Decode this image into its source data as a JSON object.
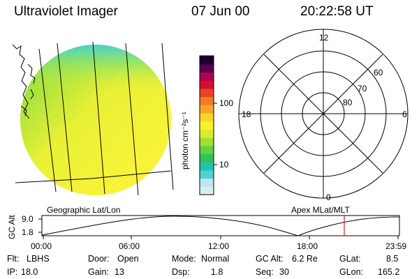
{
  "header": {
    "title": "Ultraviolet Imager",
    "date": "07 Jun 00",
    "time": "20:22:58 UT"
  },
  "globe_panel": {
    "label": "Geographic Lat/Lon"
  },
  "colorbar": {
    "unit_label": "photon cm⁻²s⁻¹",
    "tick_100": "100",
    "tick_10": "10",
    "colors": [
      "#d9eef2",
      "#bfe6ee",
      "#4fd1d6",
      "#22c2b0",
      "#2ec25a",
      "#62d23a",
      "#9fe033",
      "#d8ee2a",
      "#f7f22a",
      "#f8d826",
      "#f6a52a",
      "#f27b28",
      "#e84426",
      "#d40f2a",
      "#b0004e",
      "#5a0050",
      "#1a0030"
    ]
  },
  "polar_panel": {
    "label": "Apex MLat/MLT",
    "mlt_12": "12",
    "mlt_18": "18",
    "mlt_6": "6",
    "mlt_0": "0",
    "lat_60": "60",
    "lat_70": "70",
    "lat_80": "80"
  },
  "altitude_plot": {
    "ylabel": "GC Alt",
    "ytick_top": "9.0",
    "ytick_bottom": "1.8",
    "xticks": [
      "00:00",
      "06:00",
      "12:00",
      "18:00",
      "23:59"
    ],
    "current_time_marker_color": "#e02020"
  },
  "footer": {
    "flt_label": "Flt:",
    "flt_value": "LBHS",
    "ip_label": "IP:",
    "ip_value": "18.0",
    "door_label": "Door:",
    "door_value": "Open",
    "gain_label": "Gain:",
    "gain_value": "13",
    "mode_label": "Mode:",
    "mode_value": "Normal",
    "dsp_label": "Dsp:",
    "dsp_value": "1.8",
    "gcalt_label": "GC Alt:",
    "gcalt_value": "6.2 Re",
    "seq_label": "Seq:",
    "seq_value": "30",
    "glat_label": "GLat:",
    "glat_value": "8.5",
    "glon_label": "GLon:",
    "glon_value": "165.2"
  }
}
